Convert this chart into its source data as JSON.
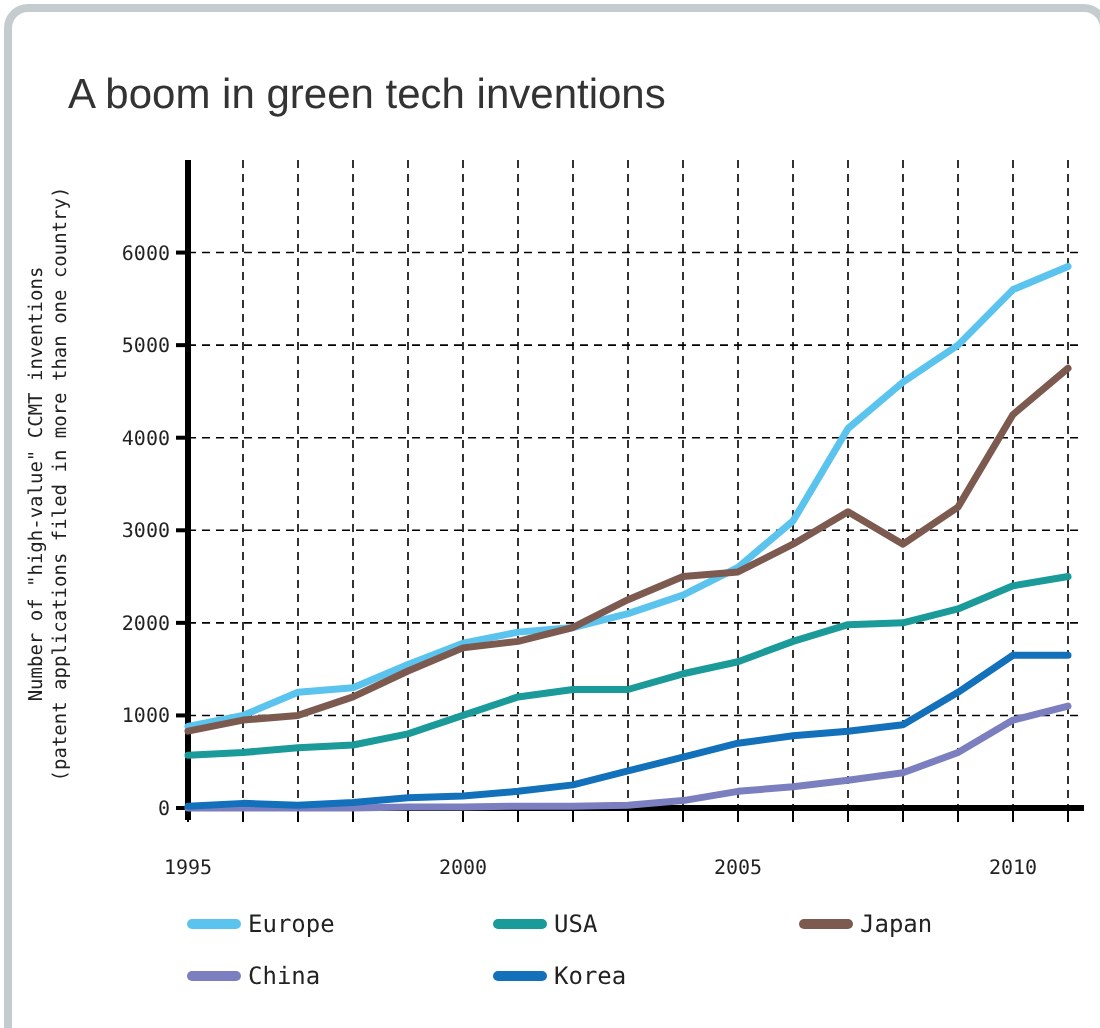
{
  "chart_data": {
    "type": "line",
    "title": "A boom in green tech inventions",
    "ylabel": "Number of \"high-value\" CCMT inventions\n(patent applications filed in more than one country)",
    "x": [
      1995,
      1996,
      1997,
      1998,
      1999,
      2000,
      2001,
      2002,
      2003,
      2004,
      2005,
      2006,
      2007,
      2008,
      2009,
      2010,
      2011
    ],
    "series": [
      {
        "name": "Europe",
        "color": "#5bc4ee",
        "values": [
          880,
          1000,
          1250,
          1300,
          1550,
          1780,
          1900,
          1950,
          2100,
          2300,
          2600,
          3100,
          4100,
          4600,
          5000,
          5600,
          5850
        ]
      },
      {
        "name": "USA",
        "color": "#1b9a9a",
        "values": [
          570,
          600,
          650,
          680,
          800,
          1000,
          1200,
          1280,
          1280,
          1450,
          1580,
          1800,
          1980,
          2000,
          2150,
          2400,
          2500
        ]
      },
      {
        "name": "Japan",
        "color": "#7d5a50",
        "values": [
          830,
          950,
          1000,
          1200,
          1480,
          1730,
          1800,
          1950,
          2250,
          2500,
          2550,
          2850,
          3200,
          2850,
          3250,
          4250,
          4750
        ]
      },
      {
        "name": "China",
        "color": "#7b7fc0",
        "values": [
          0,
          0,
          0,
          0,
          10,
          10,
          20,
          20,
          30,
          80,
          180,
          230,
          300,
          380,
          600,
          950,
          1100
        ]
      },
      {
        "name": "Korea",
        "color": "#1371bb",
        "values": [
          20,
          50,
          30,
          60,
          110,
          130,
          180,
          250,
          400,
          550,
          700,
          780,
          830,
          900,
          1250,
          1650,
          1650
        ]
      }
    ],
    "xlim": [
      1995,
      2011
    ],
    "xticks": [
      1995,
      {
        "value": 1996,
        "label": null
      },
      {
        "value": 1997,
        "label": null
      },
      {
        "value": 1998,
        "label": null
      },
      {
        "value": 1999,
        "label": null
      },
      2000,
      {
        "value": 2001,
        "label": null
      },
      {
        "value": 2002,
        "label": null
      },
      {
        "value": 2003,
        "label": null
      },
      {
        "value": 2004,
        "label": null
      },
      2005,
      {
        "value": 2006,
        "label": null
      },
      {
        "value": 2007,
        "label": null
      },
      {
        "value": 2008,
        "label": null
      },
      {
        "value": 2009,
        "label": null
      },
      2010,
      {
        "value": 2011,
        "label": null
      }
    ],
    "ylim": [
      0,
      7000
    ],
    "yticks": [
      0,
      1000,
      2000,
      3000,
      4000,
      5000,
      6000
    ],
    "grid": true,
    "legend": "bottom",
    "line_style": "solid",
    "marker": "none"
  }
}
